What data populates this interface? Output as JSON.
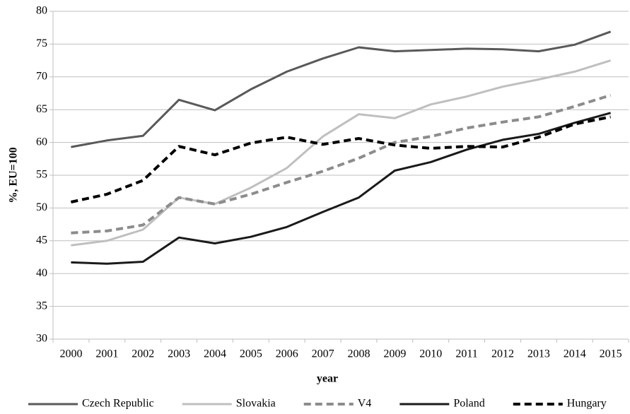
{
  "chart_data": {
    "type": "line",
    "x_label": "year",
    "y_label": "%, EU=100",
    "categories": [
      "2000",
      "2001",
      "2002",
      "2003",
      "2004",
      "2005",
      "2006",
      "2007",
      "2008",
      "2009",
      "2010",
      "2011",
      "2012",
      "2013",
      "2014",
      "2015"
    ],
    "ylim": [
      30,
      80
    ],
    "yticks": [
      30,
      35,
      40,
      45,
      50,
      55,
      60,
      65,
      70,
      75,
      80
    ],
    "grid": true,
    "legend": "bottom",
    "series": [
      {
        "name": "Czech Republic",
        "color": "#595959",
        "dashed": false,
        "values": [
          59.3,
          60.3,
          61.0,
          66.5,
          64.9,
          68.1,
          70.8,
          72.8,
          74.5,
          73.9,
          74.1,
          74.3,
          74.2,
          73.9,
          74.9,
          76.9
        ]
      },
      {
        "name": "Slovakia",
        "color": "#bfbfbf",
        "dashed": false,
        "values": [
          44.3,
          45.0,
          46.7,
          51.6,
          50.6,
          53.1,
          56.1,
          60.9,
          64.3,
          63.7,
          65.8,
          67.0,
          68.5,
          69.6,
          70.8,
          72.5
        ]
      },
      {
        "name": "V4",
        "color": "#8c8c8c",
        "dashed": true,
        "values": [
          46.2,
          46.5,
          47.4,
          51.6,
          50.6,
          52.1,
          53.9,
          55.6,
          57.6,
          60.0,
          60.9,
          62.2,
          63.1,
          63.9,
          65.5,
          67.2
        ]
      },
      {
        "name": "Poland",
        "color": "#1a1a1a",
        "dashed": false,
        "values": [
          41.7,
          41.5,
          41.8,
          45.5,
          44.6,
          45.6,
          47.1,
          49.4,
          51.6,
          55.7,
          57.0,
          58.9,
          60.4,
          61.3,
          63.0,
          64.5
        ]
      },
      {
        "name": "Hungary",
        "color": "#000000",
        "dashed": true,
        "values": [
          50.9,
          52.1,
          54.2,
          59.4,
          58.1,
          59.9,
          60.8,
          59.7,
          60.6,
          59.6,
          59.1,
          59.4,
          59.3,
          60.8,
          62.8,
          63.9
        ]
      }
    ]
  }
}
